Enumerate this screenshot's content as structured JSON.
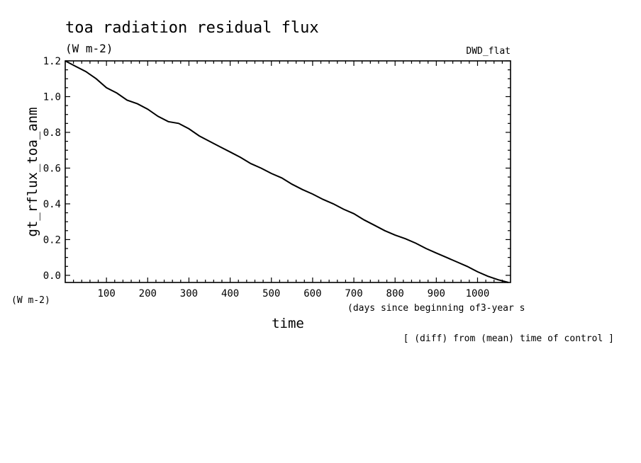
{
  "chart_data": {
    "type": "line",
    "title": "toa radiation residual flux",
    "subtitle": "(W m-2)",
    "model_label": "DWD_flat",
    "ylabel": "gt_rflux_toa_anm",
    "yunits": "(W m-2)",
    "xlabel": "time",
    "xunits": "(days since beginning of3-year s",
    "footnote": "[ (diff) from (mean) time of control ]",
    "xlim": [
      0,
      1080
    ],
    "ylim": [
      -0.04,
      1.2
    ],
    "xticks": [
      100,
      200,
      300,
      400,
      500,
      600,
      700,
      800,
      900,
      1000
    ],
    "xtick_labels": [
      "100",
      "200",
      "300",
      "400",
      "500",
      "600",
      "700",
      "800",
      "900",
      "1000"
    ],
    "yticks": [
      0.0,
      0.2,
      0.4,
      0.6,
      0.8,
      1.0,
      1.2
    ],
    "ytick_labels": [
      "0.0",
      "0.2",
      "0.4",
      "0.6",
      "0.8",
      "1.0",
      "1.2"
    ],
    "series": [
      {
        "name": "gt_rflux_toa_anm",
        "x": [
          0,
          25,
          50,
          75,
          100,
          125,
          150,
          175,
          200,
          225,
          250,
          275,
          300,
          325,
          350,
          375,
          400,
          425,
          450,
          475,
          500,
          525,
          550,
          575,
          600,
          625,
          650,
          675,
          700,
          725,
          750,
          775,
          800,
          825,
          850,
          875,
          900,
          925,
          950,
          975,
          1000,
          1025,
          1050,
          1075
        ],
        "y": [
          1.2,
          1.17,
          1.14,
          1.1,
          1.05,
          1.02,
          0.98,
          0.96,
          0.93,
          0.89,
          0.86,
          0.85,
          0.82,
          0.78,
          0.75,
          0.72,
          0.69,
          0.66,
          0.625,
          0.6,
          0.57,
          0.545,
          0.51,
          0.48,
          0.455,
          0.425,
          0.4,
          0.37,
          0.345,
          0.31,
          0.28,
          0.25,
          0.225,
          0.205,
          0.18,
          0.15,
          0.125,
          0.1,
          0.075,
          0.05,
          0.02,
          -0.005,
          -0.025,
          -0.045
        ]
      }
    ]
  }
}
